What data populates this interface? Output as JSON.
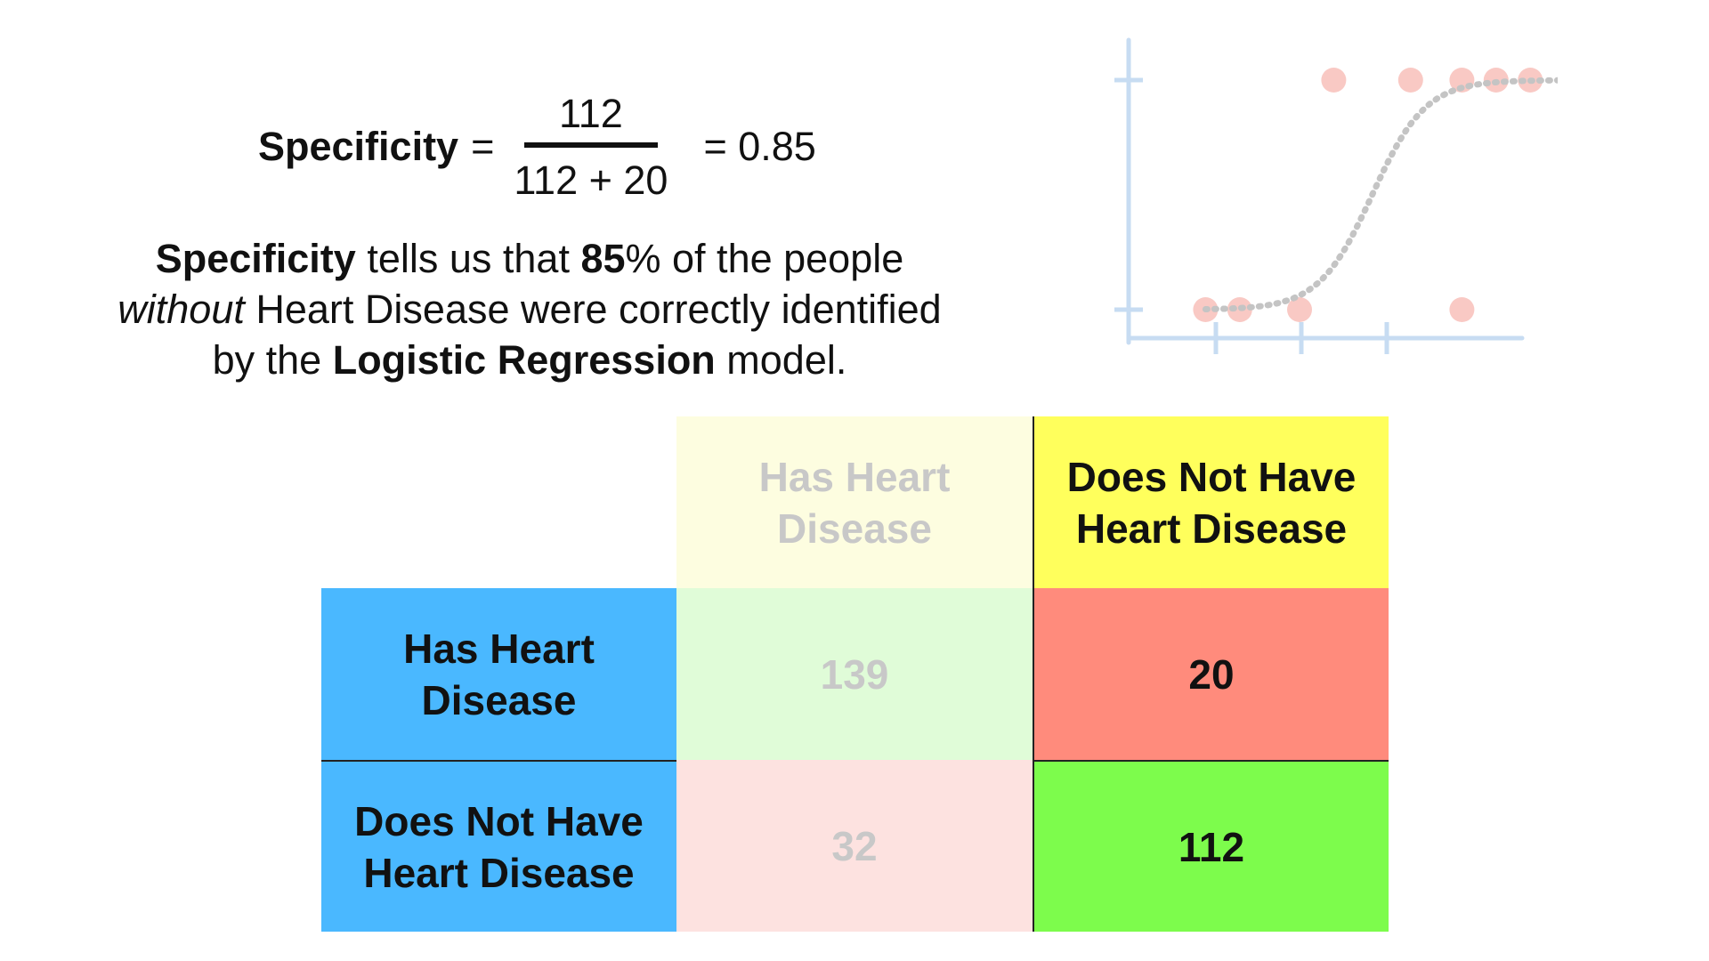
{
  "formula": {
    "lhs": "Specificity",
    "eq": "=",
    "numerator": "112",
    "denominator": "112 + 20",
    "result": "= 0.85"
  },
  "explanation": {
    "s1_bold": "Specificity",
    "s2": " tells us that ",
    "s3_bold": "85",
    "s4": "% of the people",
    "s5_italic": "without",
    "s6": " Heart Disease were correctly identified",
    "s7": "by the ",
    "s8_bold": "Logistic Regression",
    "s9": " model."
  },
  "matrix": {
    "col_headers": [
      "Has Heart Disease",
      "Does Not Have Heart Disease"
    ],
    "row_headers": [
      "Has Heart Disease",
      "Does Not Have Heart Disease"
    ],
    "values": [
      [
        "139",
        "20"
      ],
      [
        "32",
        "112"
      ]
    ]
  },
  "colors": {
    "row_header": "#4ab8ff",
    "col_header_faded": "#fdfde0",
    "col_header_active": "#ffff5c",
    "cell_tp_faded": "#e0fcd8",
    "cell_fn": "#ff8b7c",
    "cell_fp_faded": "#fde2e0",
    "cell_tn": "#7dfc4c",
    "faded_text": "#c8c8c8",
    "axis": "#c7dcf2",
    "dot": "#f9c9c4",
    "curve": "#c4c4c4"
  },
  "plot": {
    "curve": "sigmoid",
    "points_low_x": [
      0.9,
      1.3,
      2.0,
      3.9
    ],
    "points_high_x": [
      2.4,
      3.3,
      3.9,
      4.3,
      4.7
    ]
  }
}
